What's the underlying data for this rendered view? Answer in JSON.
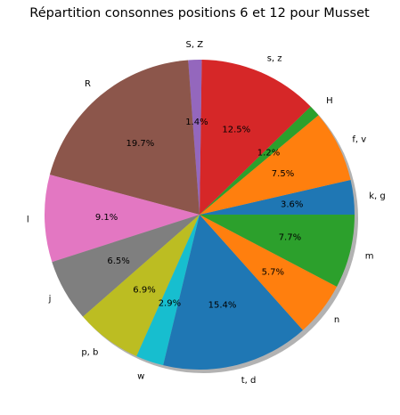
{
  "chart_data": {
    "type": "pie",
    "title": "Répartition consonnes positions 6 et 12 pour Musset",
    "start_angle_deg": 0,
    "direction": "counterclockwise",
    "shadow": true,
    "slices": [
      {
        "label": "k, g",
        "value": 3.6,
        "pct_text": "3.6%",
        "color": "#1f77b4"
      },
      {
        "label": "f, v",
        "value": 7.5,
        "pct_text": "7.5%",
        "color": "#ff7f0e"
      },
      {
        "label": "H",
        "value": 1.2,
        "pct_text": "1.2%",
        "color": "#2ca02c"
      },
      {
        "label": "s, z",
        "value": 12.5,
        "pct_text": "12.5%",
        "color": "#d62728"
      },
      {
        "label": "S, Z",
        "value": 1.4,
        "pct_text": "1.4%",
        "color": "#9467bd"
      },
      {
        "label": "R",
        "value": 19.7,
        "pct_text": "19.7%",
        "color": "#8c564b"
      },
      {
        "label": "l",
        "value": 9.1,
        "pct_text": "9.1%",
        "color": "#e377c2"
      },
      {
        "label": "j",
        "value": 6.5,
        "pct_text": "6.5%",
        "color": "#7f7f7f"
      },
      {
        "label": "p, b",
        "value": 6.9,
        "pct_text": "6.9%",
        "color": "#bcbd22"
      },
      {
        "label": "w",
        "value": 2.9,
        "pct_text": "2.9%",
        "color": "#17becf"
      },
      {
        "label": "t, d",
        "value": 15.4,
        "pct_text": "15.4%",
        "color": "#1f77b4"
      },
      {
        "label": "n",
        "value": 5.7,
        "pct_text": "5.7%",
        "color": "#ff7f0e"
      },
      {
        "label": "m",
        "value": 7.7,
        "pct_text": "7.7%",
        "color": "#2ca02c"
      }
    ]
  }
}
